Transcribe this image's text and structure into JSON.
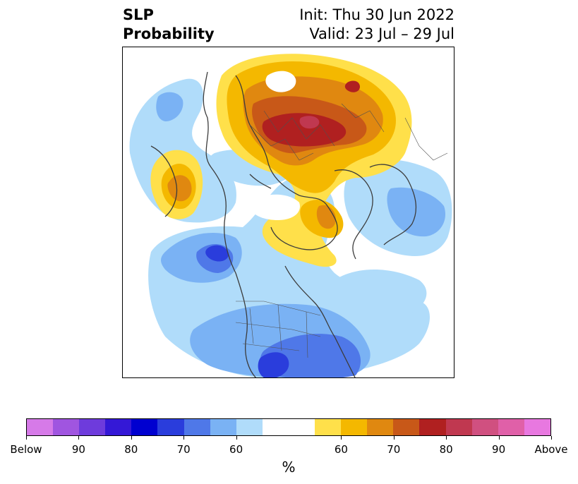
{
  "header": {
    "title_line1": "SLP",
    "title_line2": "Probability",
    "init_text": "Init: Thu 30 Jun 2022",
    "valid_text": "Valid: 23 Jul – 29 Jul"
  },
  "colorbar": {
    "colors": [
      "#d67ae8",
      "#a055e0",
      "#6e3bdc",
      "#3418d6",
      "#0000d0",
      "#2a3ddc",
      "#4f78e8",
      "#7ab2f4",
      "#b0dcfa",
      "#ffffff",
      "#ffffff",
      "#ffe04a",
      "#f4b800",
      "#e08810",
      "#c85818",
      "#b02020",
      "#c03850",
      "#d05080",
      "#e060a8",
      "#e878e0"
    ],
    "tick_labels": [
      "Below",
      "90",
      "80",
      "70",
      "60",
      "60",
      "70",
      "80",
      "90",
      "Above"
    ],
    "unit_label": "%"
  },
  "legend_semantics": {
    "below_colors": "blue-purple",
    "above_colors": "yellow-red-pink",
    "projection": "north-polar-stereographic"
  }
}
